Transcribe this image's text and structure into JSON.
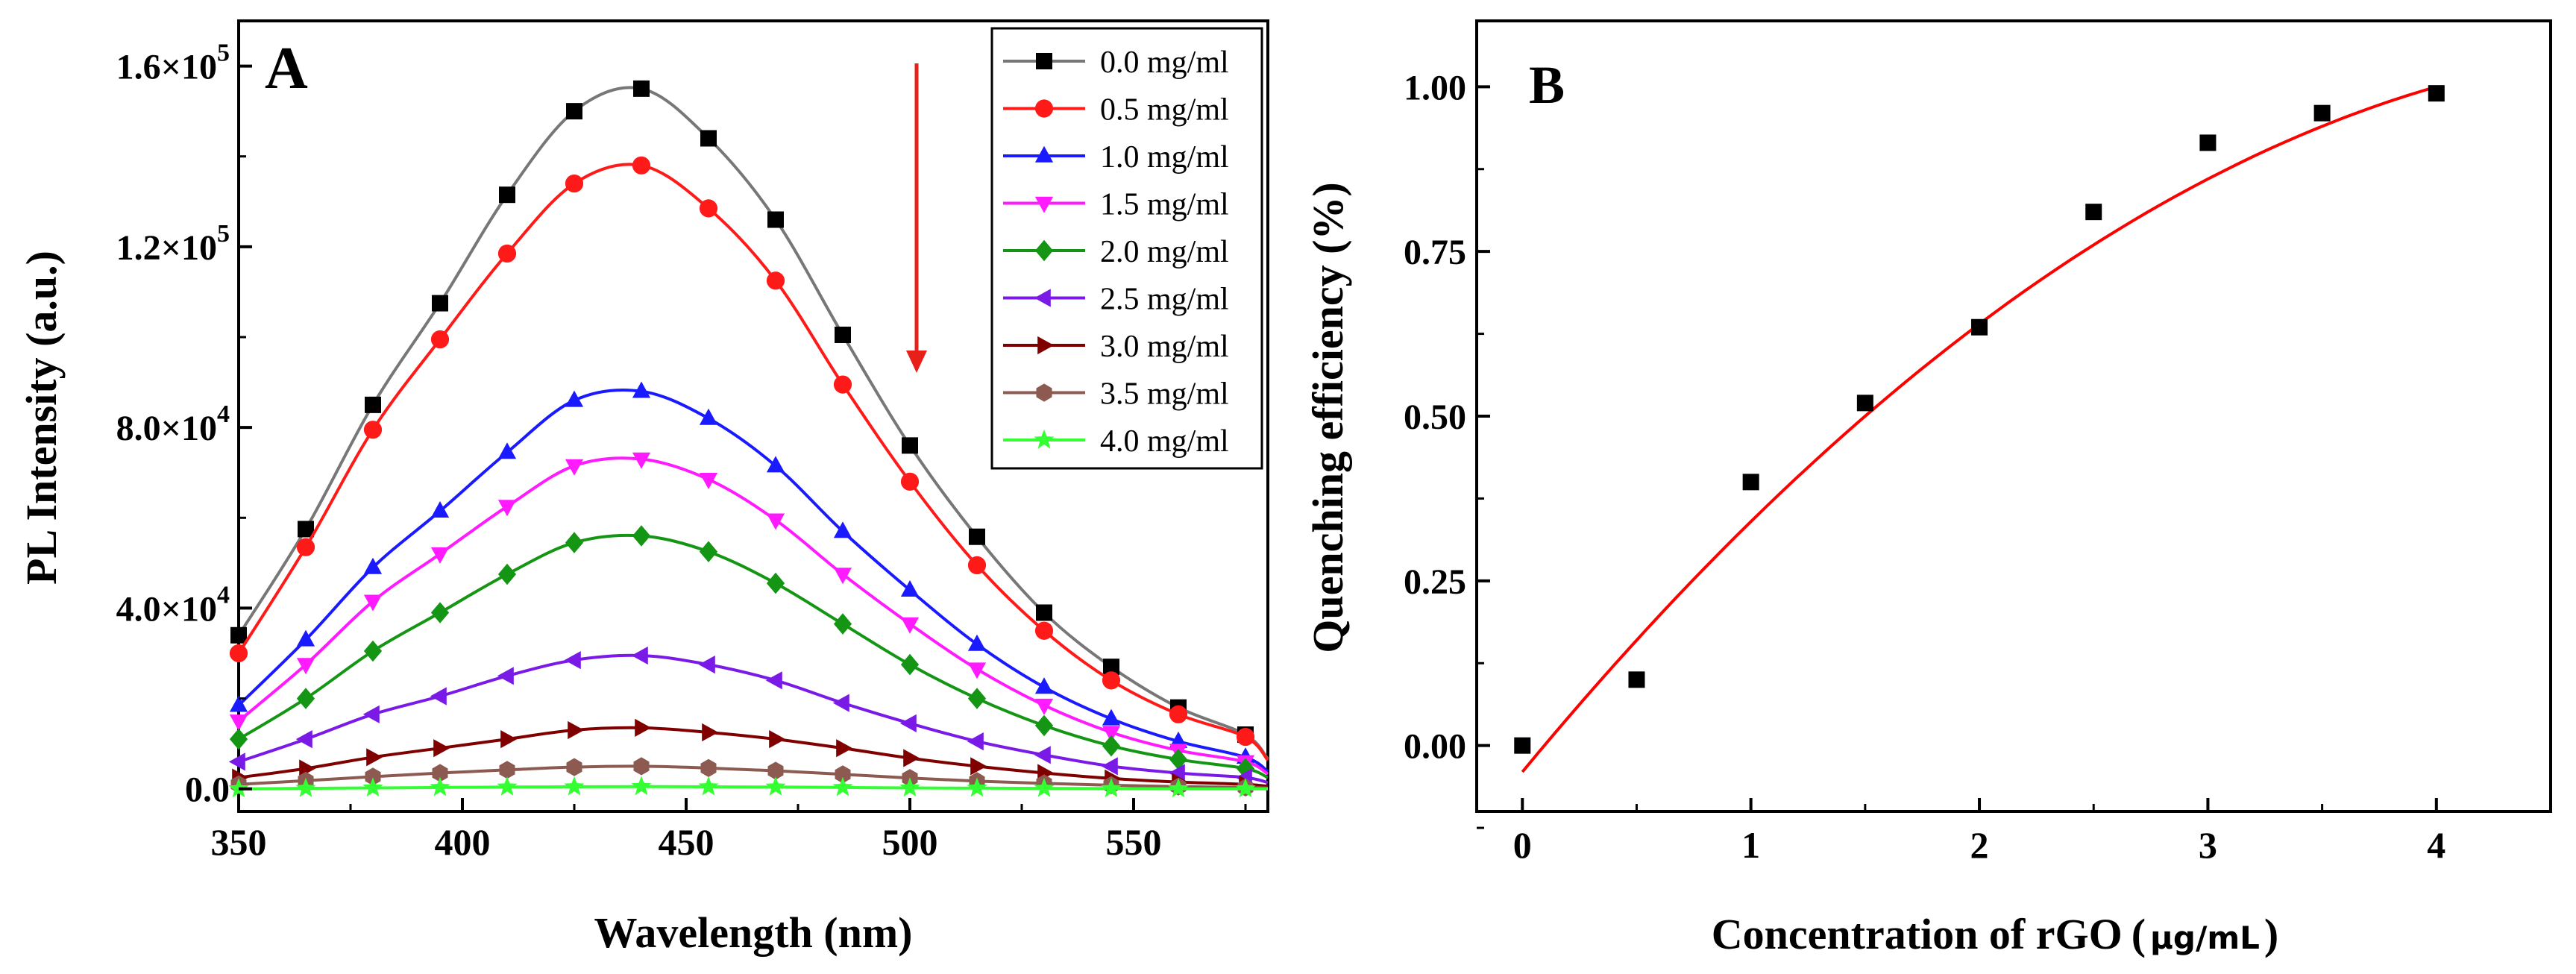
{
  "chart_data": [
    {
      "type": "line",
      "panel_label": "A",
      "xlabel": "Wavelength (nm)",
      "ylabel": "PL Intensity (a.u.)",
      "xlim": [
        350,
        580
      ],
      "ylim": [
        -5000,
        170000
      ],
      "x_ticks": [
        350,
        400,
        450,
        500,
        550
      ],
      "y_ticks": [
        {
          "value": 0,
          "label": "0.0",
          "exp": ""
        },
        {
          "value": 40000,
          "label": "4.0×10",
          "exp": "4"
        },
        {
          "value": 80000,
          "label": "8.0×10",
          "exp": "4"
        },
        {
          "value": 120000,
          "label": "1.2×10",
          "exp": "5"
        },
        {
          "value": 160000,
          "label": "1.6×10",
          "exp": "5"
        }
      ],
      "legend_position": "top-right",
      "annotation": "red downward arrow at 500 nm indicating decreasing intensity",
      "x": [
        350,
        365,
        380,
        395,
        410,
        425,
        440,
        455,
        470,
        485,
        500,
        515,
        530,
        545,
        560,
        575
      ],
      "series": [
        {
          "name": "0.0 mg/ml",
          "color": "#000000",
          "line": "#777777",
          "marker": "square",
          "values": [
            34000,
            57500,
            85000,
            107500,
            131500,
            150000,
            155000,
            144000,
            126000,
            100500,
            76000,
            55800,
            39000,
            27000,
            18000,
            12000
          ]
        },
        {
          "name": "0.5 mg/ml",
          "color": "#ff1a1a",
          "line": "#ff1a1a",
          "marker": "circle",
          "values": [
            30000,
            53500,
            79500,
            99500,
            118500,
            134000,
            138000,
            128500,
            112500,
            89500,
            68000,
            49500,
            35000,
            24000,
            16500,
            11500
          ]
        },
        {
          "name": "1.0 mg/ml",
          "color": "#1a1aff",
          "line": "#1a1aff",
          "marker": "triangle-up",
          "values": [
            18500,
            33000,
            49000,
            61500,
            74500,
            86000,
            88000,
            82000,
            71500,
            57000,
            44000,
            32000,
            22500,
            15500,
            10500,
            7000
          ]
        },
        {
          "name": "1.5 mg/ml",
          "color": "#ff1aff",
          "line": "#ff1aff",
          "marker": "triangle-down",
          "values": [
            15000,
            27500,
            41500,
            52000,
            62500,
            71500,
            73000,
            68500,
            59500,
            47500,
            36500,
            26500,
            18500,
            12500,
            8500,
            6000
          ]
        },
        {
          "name": "2.0 mg/ml",
          "color": "#149614",
          "line": "#149614",
          "marker": "diamond",
          "values": [
            11000,
            20000,
            30500,
            39000,
            47500,
            54500,
            56000,
            52500,
            45500,
            36500,
            27500,
            20000,
            14000,
            9500,
            6500,
            4500
          ]
        },
        {
          "name": "2.5 mg/ml",
          "color": "#7a1ae6",
          "line": "#7a1ae6",
          "marker": "triangle-left",
          "values": [
            6000,
            11000,
            16500,
            20500,
            25000,
            28500,
            29500,
            27500,
            24000,
            19000,
            14500,
            10500,
            7500,
            5000,
            3500,
            2500
          ]
        },
        {
          "name": "3.0 mg/ml",
          "color": "#800000",
          "line": "#800000",
          "marker": "triangle-right",
          "values": [
            2500,
            4500,
            7000,
            9000,
            11000,
            13000,
            13500,
            12500,
            11000,
            9000,
            6800,
            5000,
            3500,
            2300,
            1500,
            1000
          ]
        },
        {
          "name": "3.5 mg/ml",
          "color": "#8c5a50",
          "line": "#8c5a50",
          "marker": "hexagon",
          "values": [
            1000,
            1800,
            2700,
            3500,
            4200,
            4800,
            5000,
            4600,
            4000,
            3200,
            2400,
            1700,
            1200,
            800,
            500,
            300
          ]
        },
        {
          "name": "4.0 mg/ml",
          "color": "#33ff33",
          "line": "#33ff33",
          "marker": "star",
          "values": [
            0,
            100,
            200,
            300,
            400,
            450,
            500,
            450,
            400,
            300,
            200,
            150,
            100,
            50,
            0,
            0
          ]
        }
      ]
    },
    {
      "type": "scatter",
      "panel_label": "B",
      "xlabel": "Concentration of  rGO",
      "xunit": "μg/mL",
      "ylabel": "Quenching efficiency (%)",
      "xlim": [
        -0.2,
        4.5
      ],
      "ylim": [
        -0.1,
        1.1
      ],
      "x_ticks": [
        0,
        1,
        2,
        3,
        4
      ],
      "y_ticks": [
        "0.00",
        "0.25",
        "0.50",
        "0.75",
        "1.00"
      ],
      "x": [
        0,
        0.5,
        1,
        1.5,
        2,
        2.5,
        3,
        3.5,
        4
      ],
      "values": [
        0.0,
        0.1,
        0.4,
        0.52,
        0.635,
        0.81,
        0.915,
        0.96,
        0.99
      ],
      "marker_color": "#000000",
      "fit": {
        "type": "polynomial",
        "color": "#ff0000",
        "coefficients": [
          -0.04,
          0.42,
          -0.04
        ],
        "x_range": [
          0,
          4
        ]
      }
    }
  ]
}
